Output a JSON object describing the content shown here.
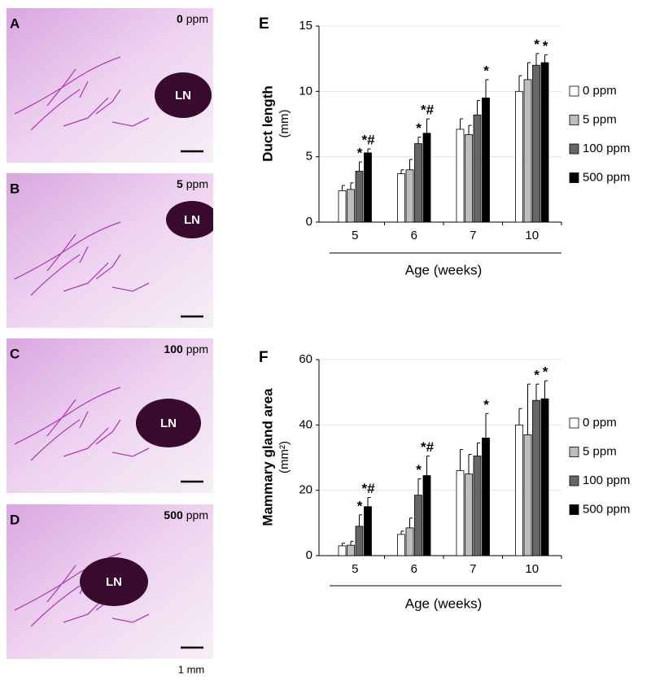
{
  "panels": [
    {
      "letter": "A",
      "dose": "0",
      "unit": "ppm",
      "node": "LN"
    },
    {
      "letter": "B",
      "dose": "5",
      "unit": "ppm",
      "node": "LN"
    },
    {
      "letter": "C",
      "dose": "100",
      "unit": "ppm",
      "node": "LN"
    },
    {
      "letter": "D",
      "dose": "500",
      "unit": "ppm",
      "node": "LN"
    }
  ],
  "scale_bar": "1 mm",
  "chart_data": [
    {
      "type": "bar",
      "panel": "E",
      "ylabel": "Duct length",
      "yunit": "(mm)",
      "xlabel": "Age (weeks)",
      "categories": [
        "5",
        "6",
        "7",
        "10"
      ],
      "ylim": [
        0,
        15
      ],
      "yticks": [
        0,
        5,
        10,
        15
      ],
      "grid": true,
      "series": [
        {
          "name": "0 ppm",
          "color": "#ffffff",
          "values": [
            2.4,
            3.7,
            7.1,
            10.0
          ],
          "errors": [
            0.4,
            0.3,
            0.8,
            1.2
          ],
          "labels": [
            null,
            null,
            null,
            null
          ]
        },
        {
          "name": "5 ppm",
          "color": "#bdbdbd",
          "values": [
            2.5,
            4.0,
            6.7,
            10.9
          ],
          "errors": [
            0.5,
            0.8,
            0.7,
            1.3
          ],
          "labels": [
            null,
            null,
            null,
            null
          ]
        },
        {
          "name": "100 ppm",
          "color": "#666666",
          "values": [
            3.9,
            6.0,
            8.2,
            12.0
          ],
          "errors": [
            0.7,
            0.5,
            1.1,
            0.9
          ],
          "labels": [
            "*",
            "*",
            null,
            "*"
          ]
        },
        {
          "name": "500 ppm",
          "color": "#000000",
          "values": [
            5.3,
            6.8,
            9.5,
            12.2
          ],
          "errors": [
            0.3,
            1.1,
            1.4,
            0.6
          ],
          "labels": [
            "*#",
            "*#",
            "*",
            "*"
          ]
        }
      ]
    },
    {
      "type": "bar",
      "panel": "F",
      "ylabel": "Mammary gland area",
      "yunit": "(mm²)",
      "xlabel": "Age (weeks)",
      "categories": [
        "5",
        "6",
        "7",
        "10"
      ],
      "ylim": [
        0,
        60
      ],
      "yticks": [
        0,
        20,
        40,
        60
      ],
      "grid": true,
      "series": [
        {
          "name": "0 ppm",
          "color": "#ffffff",
          "values": [
            3,
            6.5,
            26,
            40
          ],
          "errors": [
            0.8,
            1,
            6.5,
            5
          ],
          "labels": [
            null,
            null,
            null,
            null
          ]
        },
        {
          "name": "5 ppm",
          "color": "#bdbdbd",
          "values": [
            3.2,
            8.5,
            25,
            37
          ],
          "errors": [
            1.2,
            3,
            6,
            15.5
          ],
          "labels": [
            null,
            null,
            null,
            null
          ]
        },
        {
          "name": "100 ppm",
          "color": "#666666",
          "values": [
            9,
            18.5,
            30.5,
            47.5
          ],
          "errors": [
            3.5,
            5,
            4,
            5
          ],
          "labels": [
            "*",
            "*",
            null,
            "*"
          ]
        },
        {
          "name": "500 ppm",
          "color": "#000000",
          "values": [
            15,
            24.5,
            36,
            48
          ],
          "errors": [
            2.8,
            6,
            7.5,
            5.5
          ],
          "labels": [
            "*#",
            "*#",
            "*",
            "*"
          ]
        }
      ]
    }
  ]
}
